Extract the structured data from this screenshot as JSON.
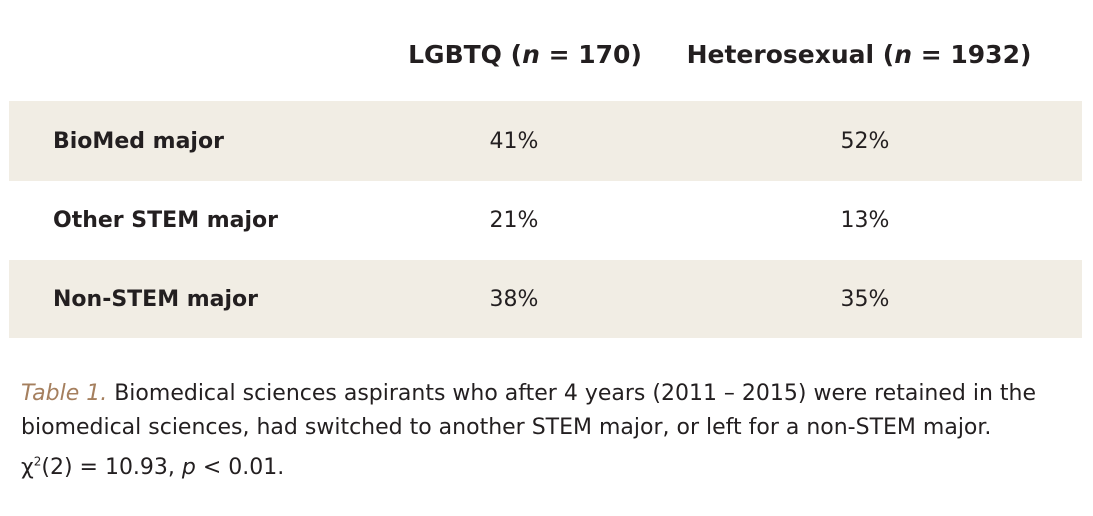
{
  "table": {
    "columns": [
      {
        "name": "LGBTQ",
        "n_label": "n",
        "n_eq": " = 170"
      },
      {
        "name": "Heterosexual",
        "n_label": "n",
        "n_eq": " = 1932"
      }
    ],
    "rows": [
      {
        "label": "BioMed major",
        "values": [
          "41%",
          "52%"
        ]
      },
      {
        "label": "Other STEM major",
        "values": [
          "21%",
          "13%"
        ]
      },
      {
        "label": "Non-STEM major",
        "values": [
          "38%",
          "35%"
        ]
      }
    ],
    "shade_color": "#f1ede4"
  },
  "caption": {
    "label": "Table 1.",
    "text": "Biomedical sciences aspirants who after 4 years (2011 – 2015) were retained in the biomedical sciences, had switched to another STEM major, or left for a non-STEM major.",
    "stat_chi": "χ",
    "stat_sup": "2",
    "stat_df": "(2) = 10.93, ",
    "stat_p": "p",
    "stat_p_val": " < 0.01.",
    "label_color": "#a57f5e"
  }
}
